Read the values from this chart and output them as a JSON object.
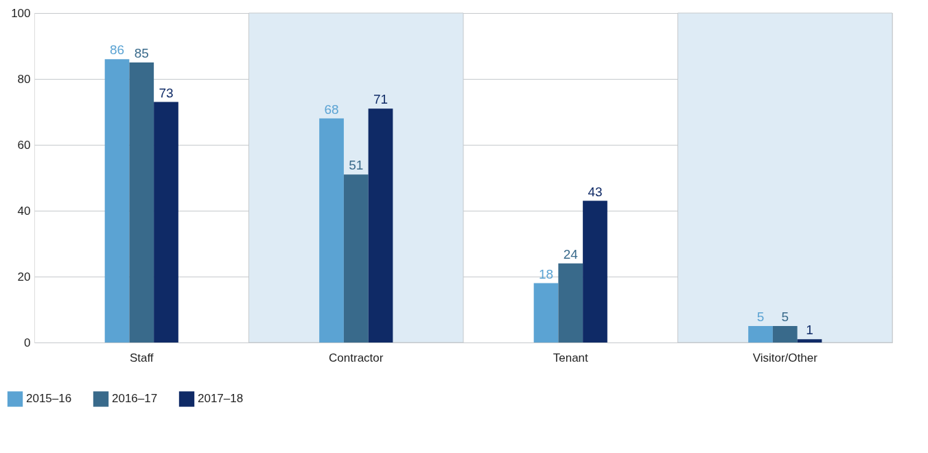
{
  "chart_data": {
    "type": "bar",
    "categories": [
      "Staff",
      "Contractor",
      "Tenant",
      "Visitor/Other"
    ],
    "series": [
      {
        "name": "2015–16",
        "color": "#5ba3d3",
        "values": [
          86,
          68,
          18,
          5
        ]
      },
      {
        "name": "2016–17",
        "color": "#396a8b",
        "values": [
          85,
          51,
          24,
          5
        ]
      },
      {
        "name": "2017–18",
        "color": "#0f2a66",
        "values": [
          73,
          71,
          43,
          1
        ]
      }
    ],
    "ylim": [
      0,
      100
    ],
    "yticks": [
      0,
      20,
      40,
      60,
      80,
      100
    ],
    "grid": "y",
    "data_labels": true,
    "legend": "bottom left",
    "bands": [
      {
        "axis": "x",
        "from": "Contractor",
        "to": "Contractor",
        "color": "#deebf5"
      },
      {
        "axis": "x",
        "from": "Visitor/Other",
        "to": "Visitor/Other",
        "color": "#deebf5"
      }
    ]
  }
}
